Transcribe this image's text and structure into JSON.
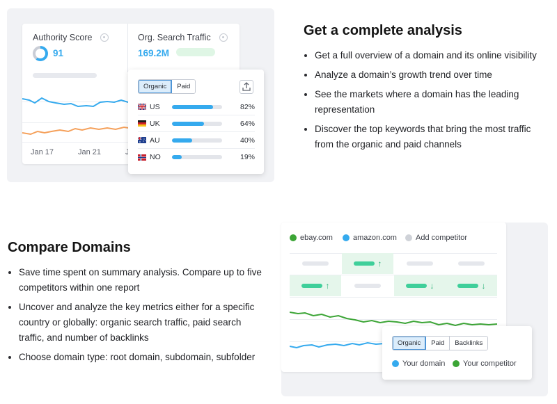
{
  "analysis_widget": {
    "authority_score": {
      "label": "Authority Score",
      "value": "91"
    },
    "org_search_traffic": {
      "label": "Org. Search Traffic",
      "value": "169.2M"
    },
    "x_axis": [
      "Jan 17",
      "Jan 21",
      "J"
    ],
    "tabs": [
      "Organic",
      "Paid"
    ],
    "active_tab": "Organic",
    "countries": [
      {
        "code": "US",
        "flag": "uk-flag-icon",
        "percent": "82%",
        "share": 0.82
      },
      {
        "code": "UK",
        "flag": "germany-flag-icon",
        "percent": "64%",
        "share": 0.64
      },
      {
        "code": "AU",
        "flag": "australia-flag-icon",
        "percent": "40%",
        "share": 0.4
      },
      {
        "code": "NO",
        "flag": "norway-flag-icon",
        "percent": "19%",
        "share": 0.19
      }
    ],
    "colors": {
      "primary": "#35aaee",
      "secondary": "#f5a05a"
    }
  },
  "section_analysis": {
    "title": "Get a complete analysis",
    "bullets": [
      "Get a full overview of a domain and its online visibility",
      "Analyze a domain’s growth trend over time",
      "See the markets where a domain has the leading representation",
      "Discover the top keywords that bring the most traffic from the organic and paid channels"
    ]
  },
  "section_compare": {
    "title": "Compare Domains",
    "bullets": [
      "Save time spent on summary analysis. Compare up to five competitors within one report",
      "Uncover and analyze the key metrics either for a specific country or globally: organic search traffic, paid search traffic, and number of backlinks",
      "Choose domain type: root domain, subdomain, subfolder"
    ]
  },
  "compare_widget": {
    "domains": [
      {
        "label": "ebay.com",
        "color": "#3ca536"
      },
      {
        "label": "amazon.com",
        "color": "#35aaee"
      },
      {
        "label": "Add competitor",
        "color": "#cfd2d8"
      }
    ],
    "tabs": [
      "Organic",
      "Paid",
      "Backlinks"
    ],
    "active_tab": "Organic",
    "legend": [
      {
        "label": "Your domain",
        "color": "#35aaee"
      },
      {
        "label": "Your competitor",
        "color": "#3ca536"
      }
    ],
    "arrows": {
      "up": "↑",
      "down": "↓"
    }
  }
}
